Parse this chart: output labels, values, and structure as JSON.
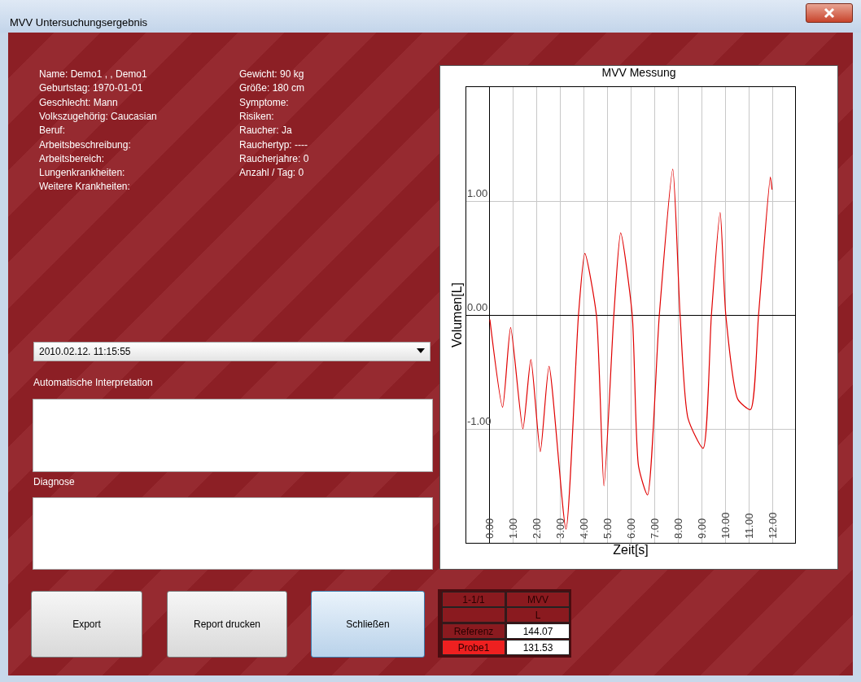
{
  "chart_data": {
    "type": "line",
    "title": "MVV Messung",
    "xlabel": "Zeit[s]",
    "ylabel": "Volumen[L]",
    "x": [
      0,
      0.54,
      0.88,
      1.4,
      1.74,
      2.14,
      2.51,
      3.23,
      3.76,
      4.03,
      4.52,
      4.84,
      5.26,
      5.55,
      6.04,
      6.31,
      6.69,
      7.19,
      7.76,
      8.07,
      8.41,
      9.05,
      9.4,
      9.77,
      10.01,
      10.52,
      11.06,
      11.4,
      11.9,
      11.97
    ],
    "values": [
      -0.04,
      -0.81,
      -0.11,
      -1.0,
      -0.39,
      -1.2,
      -0.45,
      -1.88,
      0,
      0.54,
      0,
      -1.5,
      0,
      0.72,
      0,
      -1.33,
      -1.58,
      0,
      1.28,
      0,
      -0.91,
      -1.17,
      0,
      0.9,
      0,
      -0.74,
      -0.83,
      0,
      1.21,
      1.1
    ],
    "color": "#e00000",
    "xlim": [
      -1,
      12.95
    ],
    "ylim": [
      -2,
      2
    ],
    "xticks": [
      {
        "value": 0,
        "label": "0.00"
      },
      {
        "value": 1,
        "label": "1.00"
      },
      {
        "value": 2,
        "label": "2.00"
      },
      {
        "value": 3,
        "label": "3.00"
      },
      {
        "value": 4,
        "label": "4.00"
      },
      {
        "value": 5,
        "label": "5.00"
      },
      {
        "value": 6,
        "label": "6.00"
      },
      {
        "value": 7,
        "label": "7.00"
      },
      {
        "value": 8,
        "label": "8.00"
      },
      {
        "value": 9,
        "label": "9.00"
      },
      {
        "value": 10,
        "label": "10.00"
      },
      {
        "value": 11,
        "label": "11.00"
      },
      {
        "value": 12,
        "label": "12.00"
      }
    ],
    "yticks": [
      {
        "value": -1,
        "label": "-1.00"
      },
      {
        "value": 0,
        "label": "0.00"
      },
      {
        "value": 1,
        "label": "1.00"
      }
    ],
    "grid": true,
    "annotations": [
      "MVV Untersuchungsergebnis",
      "Name: Demo1 , , Demo1",
      "Geburtstag: 1970-01-01",
      "Geschlecht: Mann",
      "Volkszugehörig: Caucasian",
      "Beruf:",
      "Arbeitsbeschreibung:",
      "Arbeitsbereich:",
      "Lungenkrankheiten:",
      "Weitere Krankheiten:",
      "Gewicht: 90 kg",
      "Größe: 180 cm",
      "Symptome:",
      "Risiken:",
      "Raucher: Ja",
      "Rauchertyp: ----",
      "Raucherjahre:  0",
      "Anzahl / Tag:   0",
      "2010.02.12.  11:15:55",
      "Automatische Interpretation",
      "Diagnose",
      "Export",
      "Report drucken",
      "Schließen",
      "1-1/1",
      "MVV",
      "L",
      "Referenz",
      "144.07",
      "Probe1",
      "131.53"
    ]
  }
}
